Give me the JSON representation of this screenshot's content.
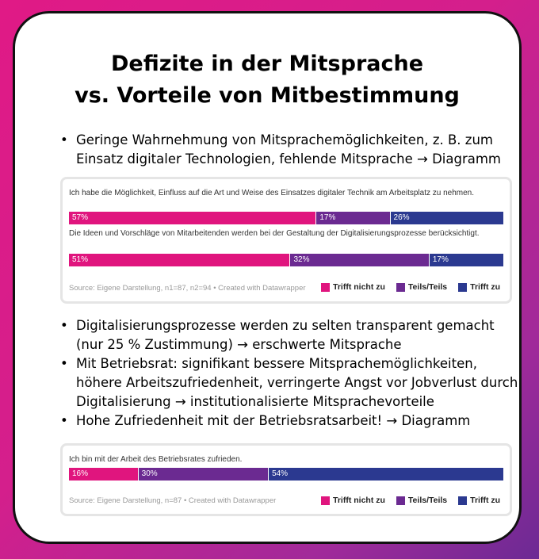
{
  "title_line1": "Defizite in der Mitsprache",
  "title_line2": "vs. Vorteile von Mitbestimmung",
  "bullets_top": [
    "Geringe Wahrnehmung von Mitsprachemöglichkeiten, z. B. zum Einsatz digitaler Technologien, fehlende Mitsprache → Diagramm"
  ],
  "bullets_bottom": [
    "Digitalisierungsprozesse werden zu selten transparent gemacht (nur  25 % Zustimmung) → erschwerte Mitsprache",
    "Mit Betriebsrat: signifikant bessere Mitsprachemöglichkeiten, höhere Arbeitszufriedenheit, verringerte Angst vor Jobverlust durch Digitalisierung → institutionalisierte Mitsprachevorteile",
    "Hohe Zufriedenheit mit der Betriebsratsarbeit! → Diagramm"
  ],
  "colors": {
    "trifft_nicht_zu": "#e0157e",
    "teils": "#6b2a91",
    "trifft_zu": "#2b3990"
  },
  "chart_data": [
    {
      "type": "bar",
      "stacked": true,
      "orientation": "horizontal",
      "categories": [
        "Ich habe die Möglichkeit, Einfluss auf die Art und Weise des Einsatzes digitaler Technik am Arbeitsplatz zu nehmen.",
        "Die Ideen und Vorschläge von Mitarbeitenden werden bei der Gestaltung der Digitalisierungsprozesse berücksichtigt."
      ],
      "series": [
        {
          "name": "Trifft nicht zu",
          "values": [
            57,
            51
          ]
        },
        {
          "name": "Teils/Teils",
          "values": [
            17,
            32
          ]
        },
        {
          "name": "Trifft zu",
          "values": [
            26,
            17
          ]
        }
      ],
      "value_labels": [
        [
          "57%",
          "17%",
          "26%"
        ],
        [
          "51%",
          "32%",
          "17%"
        ]
      ],
      "source": "Source: Eigene Darstellung, n1=87, n2=94 • Created with Datawrapper",
      "legend_position": "bottom-right"
    },
    {
      "type": "bar",
      "stacked": true,
      "orientation": "horizontal",
      "categories": [
        "Ich bin mit der Arbeit des Betriebsrates zufrieden."
      ],
      "series": [
        {
          "name": "Trifft nicht zu",
          "values": [
            16
          ]
        },
        {
          "name": "Teils/Teils",
          "values": [
            30
          ]
        },
        {
          "name": "Trifft zu",
          "values": [
            54
          ]
        }
      ],
      "value_labels": [
        [
          "16%",
          "30%",
          "54%"
        ]
      ],
      "source": "Source: Eigene Darstellung, n=87 • Created with Datawrapper",
      "legend_position": "bottom-right"
    }
  ]
}
